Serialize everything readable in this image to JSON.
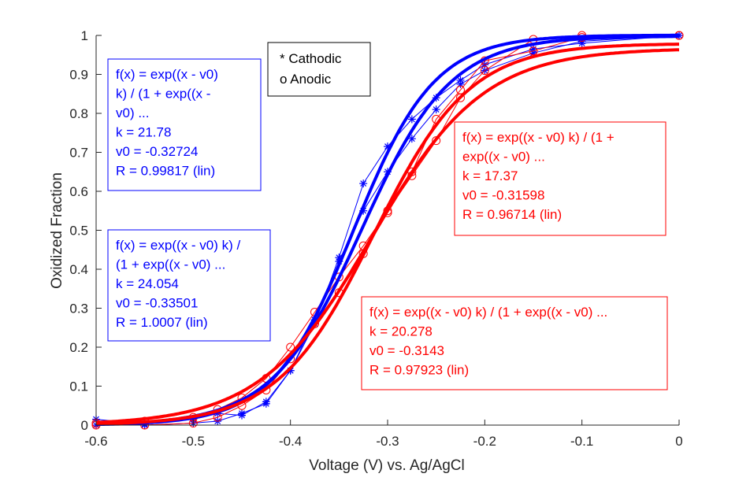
{
  "chart_data": {
    "type": "line",
    "xlabel": "Voltage (V) vs. Ag/AgCl",
    "ylabel": "Oxidized Fraction",
    "xlim": [
      -0.6,
      0
    ],
    "ylim": [
      0,
      1
    ],
    "xticks": [
      "-0.6",
      "-0.5",
      "-0.4",
      "-0.3",
      "-0.2",
      "-0.1",
      "0"
    ],
    "yticks": [
      "0",
      "0.1",
      "0.2",
      "0.3",
      "0.4",
      "0.5",
      "0.6",
      "0.7",
      "0.8",
      "0.9",
      "1"
    ],
    "grid": false,
    "legend_box": {
      "cathodic": "* Cathodic",
      "anodic": "o Anodic"
    },
    "colors": {
      "cathodic": "#0000ff",
      "anodic": "#ff0000",
      "axis": "#262626"
    },
    "series": [
      {
        "marker": "star",
        "color": "#0000ff",
        "x": [
          -0.6,
          -0.55,
          -0.5,
          -0.475,
          -0.45,
          -0.425,
          -0.4,
          -0.375,
          -0.35,
          -0.325,
          -0.3,
          -0.275,
          -0.25,
          -0.225,
          -0.2,
          -0.15,
          -0.1,
          0
        ],
        "y": [
          0.015,
          0.003,
          0.015,
          0.03,
          0.025,
          0.06,
          0.14,
          0.26,
          0.43,
          0.62,
          0.715,
          0.785,
          0.84,
          0.885,
          0.925,
          0.965,
          0.98,
          1.0
        ]
      },
      {
        "marker": "star",
        "color": "#0000ff",
        "x": [
          -0.6,
          -0.55,
          -0.5,
          -0.475,
          -0.45,
          -0.425,
          -0.4,
          -0.375,
          -0.35,
          -0.325,
          -0.3,
          -0.275,
          -0.25,
          -0.225,
          -0.2,
          -0.15,
          -0.1,
          0
        ],
        "y": [
          0.0,
          0.0,
          0.005,
          0.01,
          0.03,
          0.055,
          0.14,
          0.27,
          0.42,
          0.55,
          0.65,
          0.735,
          0.81,
          0.875,
          0.91,
          0.955,
          0.985,
          1.0
        ]
      },
      {
        "marker": "circle",
        "color": "#ff0000",
        "x": [
          -0.6,
          -0.55,
          -0.5,
          -0.475,
          -0.45,
          -0.425,
          -0.4,
          -0.375,
          -0.35,
          -0.325,
          -0.3,
          -0.275,
          -0.25,
          -0.225,
          -0.2,
          -0.15,
          -0.1,
          0
        ],
        "y": [
          0.005,
          0.01,
          0.02,
          0.04,
          0.07,
          0.12,
          0.2,
          0.29,
          0.38,
          0.46,
          0.55,
          0.64,
          0.73,
          0.84,
          0.91,
          0.99,
          1.0,
          1.0
        ]
      },
      {
        "marker": "circle",
        "color": "#ff0000",
        "x": [
          -0.6,
          -0.55,
          -0.5,
          -0.475,
          -0.45,
          -0.425,
          -0.4,
          -0.375,
          -0.35,
          -0.325,
          -0.3,
          -0.275,
          -0.25,
          -0.225,
          -0.2,
          -0.15,
          -0.1,
          0
        ],
        "y": [
          0.0,
          0.0,
          0.005,
          0.02,
          0.05,
          0.09,
          0.17,
          0.26,
          0.34,
          0.44,
          0.545,
          0.65,
          0.785,
          0.86,
          0.935,
          0.96,
          0.995,
          1.0
        ]
      }
    ],
    "fits": [
      {
        "color": "#0000ff",
        "k": 21.78,
        "v0": -0.32724,
        "R": 0.99817
      },
      {
        "color": "#0000ff",
        "k": 24.054,
        "v0": -0.33501,
        "R": 1.0007
      },
      {
        "color": "#ff0000",
        "k": 17.37,
        "v0": -0.31598,
        "R": 0.96714
      },
      {
        "color": "#ff0000",
        "k": 20.278,
        "v0": -0.3143,
        "R": 0.97923
      }
    ],
    "annotations": [
      {
        "color": "#0000ff",
        "lines": [
          "f(x) = exp((x - v0)",
          "k) / (1 + exp((x -",
          "v0) ...",
          "k = 21.78",
          "v0 = -0.32724",
          "R = 0.99817  (lin)"
        ]
      },
      {
        "color": "#0000ff",
        "lines": [
          "f(x) = exp((x - v0) k) /",
          "(1 + exp((x - v0) ...",
          "k = 24.054",
          "v0 = -0.33501",
          "R = 1.0007  (lin)"
        ]
      },
      {
        "color": "#ff0000",
        "lines": [
          "f(x) = exp((x - v0) k) / (1 +",
          "exp((x - v0) ...",
          "k = 17.37",
          "v0 = -0.31598",
          "R = 0.96714  (lin)"
        ]
      },
      {
        "color": "#ff0000",
        "lines": [
          "f(x) = exp((x - v0) k) / (1 + exp((x - v0) ...",
          "k = 20.278",
          "v0 = -0.3143",
          "R = 0.97923  (lin)"
        ]
      }
    ]
  }
}
